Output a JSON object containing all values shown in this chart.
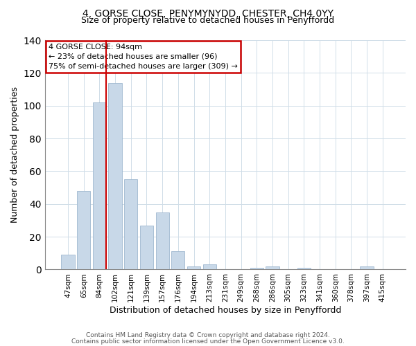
{
  "title": "4, GORSE CLOSE, PENYMYNYDD, CHESTER, CH4 0YY",
  "subtitle": "Size of property relative to detached houses in Penyffordd",
  "xlabel": "Distribution of detached houses by size in Penyffordd",
  "ylabel": "Number of detached properties",
  "bar_color": "#c8d8e8",
  "bar_edge_color": "#a0b8d0",
  "categories": [
    "47sqm",
    "65sqm",
    "84sqm",
    "102sqm",
    "121sqm",
    "139sqm",
    "157sqm",
    "176sqm",
    "194sqm",
    "213sqm",
    "231sqm",
    "249sqm",
    "268sqm",
    "286sqm",
    "305sqm",
    "323sqm",
    "341sqm",
    "360sqm",
    "378sqm",
    "397sqm",
    "415sqm"
  ],
  "values": [
    9,
    48,
    102,
    114,
    55,
    27,
    35,
    11,
    2,
    3,
    0,
    0,
    1,
    2,
    0,
    1,
    0,
    0,
    0,
    2,
    0
  ],
  "ylim": [
    0,
    140
  ],
  "yticks": [
    0,
    20,
    40,
    60,
    80,
    100,
    120,
    140
  ],
  "vline_index": 2,
  "annotation_title": "4 GORSE CLOSE: 94sqm",
  "annotation_line1": "← 23% of detached houses are smaller (96)",
  "annotation_line2": "75% of semi-detached houses are larger (309) →",
  "footer_line1": "Contains HM Land Registry data © Crown copyright and database right 2024.",
  "footer_line2": "Contains public sector information licensed under the Open Government Licence v3.0.",
  "background_color": "#ffffff",
  "vline_color": "#cc0000",
  "grid_color": "#d0dde8"
}
